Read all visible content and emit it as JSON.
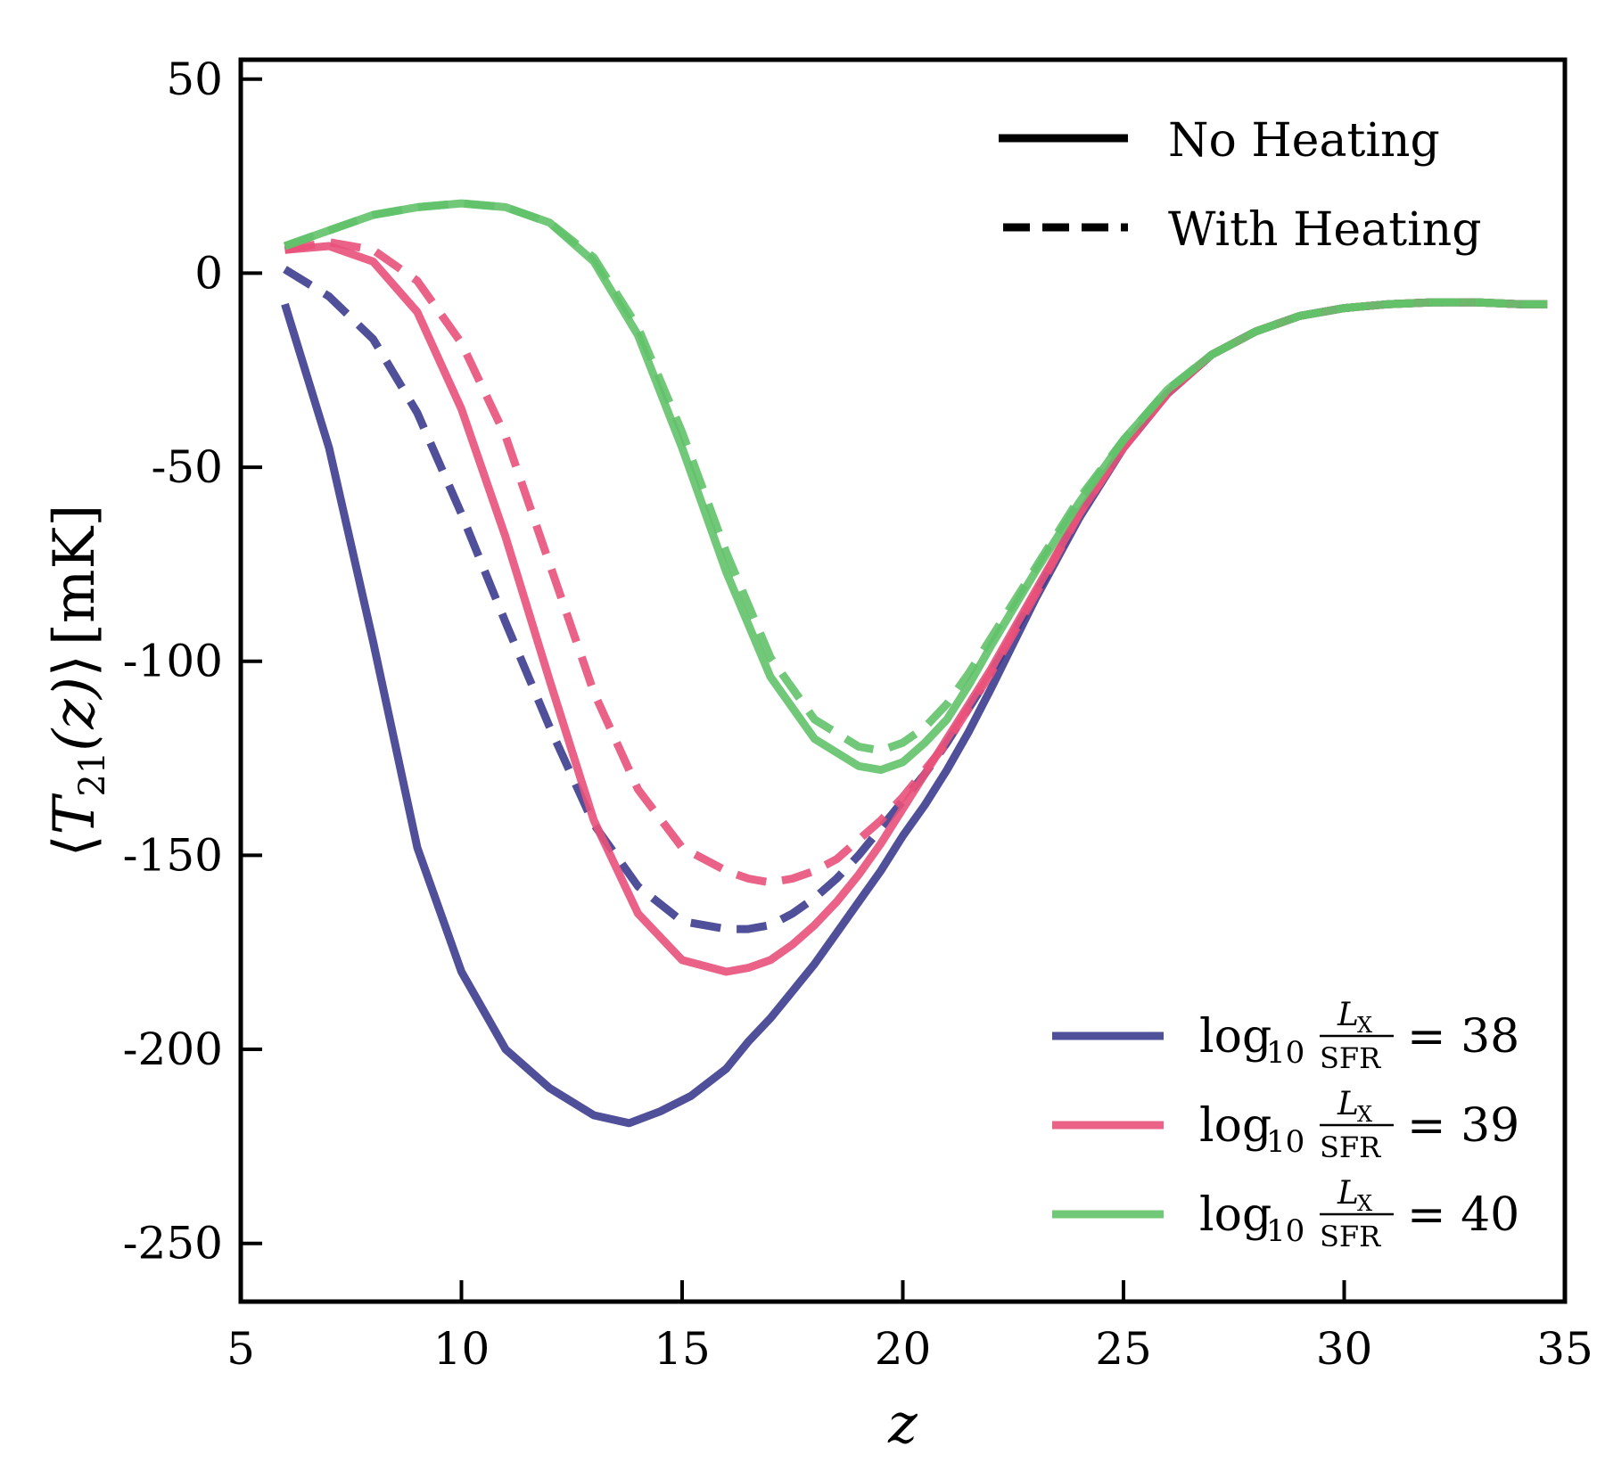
{
  "chart_data": {
    "type": "line",
    "title": "",
    "xlabel": "z",
    "ylabel": "⟨T21(z)⟩ [mK]",
    "ylabel_parts": {
      "open": "⟨",
      "symbol": "T",
      "subscript": "21",
      "args": "(z)",
      "close": "⟩",
      "units": "[mK]"
    },
    "xlim": [
      5,
      35
    ],
    "ylim": [
      -265,
      55
    ],
    "xticks": [
      5,
      10,
      15,
      20,
      25,
      30,
      35
    ],
    "yticks": [
      50,
      0,
      -50,
      -100,
      -150,
      -200,
      -250
    ],
    "ytick_labels": [
      "50",
      "0",
      "-50",
      "-100",
      "-150",
      "-200",
      "-250"
    ],
    "grid": false,
    "style_legend": {
      "location": "top-right",
      "entries": [
        {
          "label": "No Heating",
          "dash": "solid"
        },
        {
          "label": "With Heating",
          "dash": "dashed"
        }
      ]
    },
    "color_legend": {
      "location": "bottom-right",
      "prefix": "log",
      "prefix_sub": "10",
      "frac_num": "L",
      "frac_num_sub": "X",
      "frac_den": "SFR",
      "entries": [
        {
          "value": "= 38",
          "color": "#3d3d8f"
        },
        {
          "value": "= 39",
          "color": "#e8517a"
        },
        {
          "value": "= 40",
          "color": "#62c26a"
        }
      ]
    },
    "series": [
      {
        "name": "log10 LX/SFR = 38, No Heating",
        "color": "#3d3d8f",
        "dash": "solid",
        "x": [
          6,
          7,
          8,
          9,
          10,
          11,
          12,
          13,
          13.8,
          14.5,
          15.2,
          16.0,
          16.5,
          17.0,
          17.5,
          18.0,
          18.5,
          19.0,
          19.5,
          20.0,
          20.5,
          21.0,
          21.5,
          22.0,
          23.0,
          24.0,
          25.0,
          26.0,
          27.0,
          28.0,
          29.0,
          30.0,
          31.0,
          32.0,
          33.0,
          34.0,
          34.6
        ],
        "y": [
          -8,
          -45,
          -95,
          -148,
          -180,
          -200,
          -210,
          -217,
          -219,
          -216,
          -212,
          -205,
          -198,
          -192,
          -185,
          -178,
          -170,
          -162,
          -154,
          -145,
          -137,
          -128,
          -118,
          -107,
          -84,
          -63,
          -45,
          -31,
          -21,
          -15,
          -11,
          -9,
          -8,
          -7.5,
          -7.5,
          -8,
          -8
        ]
      },
      {
        "name": "log10 LX/SFR = 38, With Heating",
        "color": "#3d3d8f",
        "dash": "dashed",
        "x": [
          6,
          7,
          8,
          9,
          10,
          11,
          12,
          13,
          14,
          15,
          16.0,
          16.5,
          17.0,
          17.5,
          18.0,
          18.5,
          19.0,
          19.5,
          20.0,
          20.5,
          21.0,
          21.5,
          22.0,
          23.0,
          24.0,
          25.0,
          26.0,
          27.0,
          28.0,
          29.0,
          30.0,
          31.0,
          32.0,
          33.0,
          34.0,
          34.6
        ],
        "y": [
          1,
          -6,
          -17,
          -36,
          -62,
          -90,
          -117,
          -142,
          -158,
          -167,
          -169,
          -169,
          -168,
          -165,
          -161,
          -156,
          -150,
          -143,
          -136,
          -129,
          -121,
          -112,
          -103,
          -83,
          -62,
          -45,
          -31,
          -21,
          -15,
          -11,
          -9,
          -8,
          -7.5,
          -7.5,
          -8,
          -8
        ]
      },
      {
        "name": "log10 LX/SFR = 39, No Heating",
        "color": "#e8517a",
        "dash": "solid",
        "x": [
          6,
          7,
          8,
          9,
          10,
          11,
          12,
          13,
          14,
          15,
          16.0,
          16.5,
          17.0,
          17.5,
          18.0,
          18.5,
          19.0,
          19.5,
          20.0,
          20.5,
          21.0,
          21.5,
          22.0,
          23.0,
          24.0,
          25.0,
          26.0,
          27.0,
          28.0,
          29.0,
          30.0,
          31.0,
          32.0,
          33.0,
          34.0,
          34.6
        ],
        "y": [
          6,
          7,
          3,
          -10,
          -35,
          -68,
          -105,
          -141,
          -165,
          -177,
          -180,
          -179,
          -177,
          -173,
          -168,
          -162,
          -155,
          -147,
          -138,
          -129,
          -120,
          -111,
          -102,
          -82,
          -62,
          -45,
          -31,
          -21,
          -15,
          -11,
          -9,
          -8,
          -7.5,
          -7.5,
          -8,
          -8
        ]
      },
      {
        "name": "log10 LX/SFR = 39, With Heating",
        "color": "#e8517a",
        "dash": "dashed",
        "x": [
          6,
          7,
          8,
          9,
          10,
          11,
          12,
          13,
          14,
          15,
          16.0,
          16.5,
          17.0,
          17.5,
          18.0,
          18.5,
          19.0,
          19.5,
          20.0,
          20.5,
          21.0,
          21.5,
          22.0,
          23.0,
          24.0,
          25.0,
          26.0,
          27.0,
          28.0,
          29.0,
          30.0,
          31.0,
          32.0,
          33.0,
          34.0,
          34.6
        ],
        "y": [
          6,
          8,
          6,
          -2,
          -18,
          -42,
          -75,
          -108,
          -133,
          -148,
          -154,
          -156,
          -157,
          -156,
          -154,
          -151,
          -146,
          -141,
          -135,
          -128,
          -121,
          -112,
          -103,
          -83,
          -62,
          -45,
          -31,
          -21,
          -15,
          -11,
          -9,
          -8,
          -7.5,
          -7.5,
          -8,
          -8
        ]
      },
      {
        "name": "log10 LX/SFR = 40, No Heating",
        "color": "#62c26a",
        "dash": "solid",
        "x": [
          6,
          7,
          8,
          9,
          10,
          11,
          12,
          13,
          14,
          15,
          16,
          17,
          18,
          19,
          19.5,
          20.0,
          20.5,
          21.0,
          21.5,
          22.0,
          23.0,
          24.0,
          25.0,
          26.0,
          27.0,
          28.0,
          29.0,
          30.0,
          31.0,
          32.0,
          33.0,
          34.0,
          34.6
        ],
        "y": [
          7,
          11,
          15,
          17,
          18,
          17,
          13,
          3,
          -16,
          -45,
          -77,
          -104,
          -120,
          -127,
          -128,
          -126,
          -121,
          -115,
          -106,
          -96,
          -77,
          -59,
          -43,
          -30,
          -21,
          -15,
          -11,
          -9,
          -8,
          -7.5,
          -7.5,
          -8,
          -8
        ]
      },
      {
        "name": "log10 LX/SFR = 40, With Heating",
        "color": "#62c26a",
        "dash": "dashed",
        "x": [
          6,
          7,
          8,
          9,
          10,
          11,
          12,
          13,
          14,
          15,
          16,
          17,
          18,
          19,
          19.5,
          20.0,
          20.5,
          21.0,
          21.5,
          22.0,
          23.0,
          24.0,
          25.0,
          26.0,
          27.0,
          28.0,
          29.0,
          30.0,
          31.0,
          32.0,
          33.0,
          34.0,
          34.6
        ],
        "y": [
          7,
          11,
          15,
          17,
          18,
          17,
          13,
          4,
          -14,
          -41,
          -72,
          -99,
          -115,
          -122,
          -123,
          -121,
          -117,
          -111,
          -103,
          -94,
          -76,
          -58,
          -43,
          -30,
          -21,
          -15,
          -11,
          -9,
          -8,
          -7.5,
          -7.5,
          -8,
          -8
        ]
      }
    ]
  }
}
